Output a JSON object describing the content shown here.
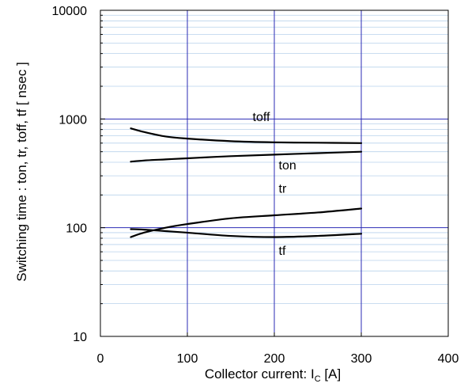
{
  "chart_data": {
    "type": "line",
    "xlabel": "Collector current: I",
    "xlabel_sub": "C",
    "xlabel_unit": " [A]",
    "ylabel": "Switching time  :  ton, tr, toff, tf  [ nsec ]",
    "x_scale": "linear",
    "y_scale": "log",
    "xlim": [
      0,
      400
    ],
    "ylim": [
      10,
      10000
    ],
    "x_ticks": [
      0,
      100,
      200,
      300,
      400
    ],
    "x_tick_labels": [
      "0",
      "100",
      "200",
      "300",
      "400"
    ],
    "y_ticks": [
      10,
      100,
      1000,
      10000
    ],
    "y_tick_labels": [
      "10",
      "100",
      "1000",
      "10000"
    ],
    "grid": "major and minor",
    "series": [
      {
        "name": "toff",
        "label_at": [
          175,
          960
        ],
        "x": [
          35,
          50,
          75,
          100,
          150,
          200,
          250,
          300
        ],
        "y": [
          820,
          760,
          690,
          660,
          625,
          610,
          605,
          600
        ]
      },
      {
        "name": "ton",
        "label_at": [
          205,
          345
        ],
        "x": [
          35,
          50,
          75,
          100,
          150,
          200,
          250,
          300
        ],
        "y": [
          405,
          415,
          425,
          435,
          455,
          470,
          485,
          500
        ]
      },
      {
        "name": "tr",
        "label_at": [
          205,
          210
        ],
        "x": [
          35,
          50,
          75,
          100,
          150,
          200,
          250,
          300
        ],
        "y": [
          82,
          90,
          100,
          108,
          122,
          130,
          138,
          150
        ]
      },
      {
        "name": "tf",
        "label_at": [
          205,
          56
        ],
        "x": [
          35,
          50,
          75,
          100,
          150,
          200,
          250,
          300
        ],
        "y": [
          97,
          96,
          93,
          90,
          84,
          82,
          84,
          88
        ]
      }
    ]
  },
  "colors": {
    "major_grid": "#2b2bb5",
    "minor_grid": "#b8d2ec",
    "series": "#000000",
    "axis": "#000000"
  }
}
